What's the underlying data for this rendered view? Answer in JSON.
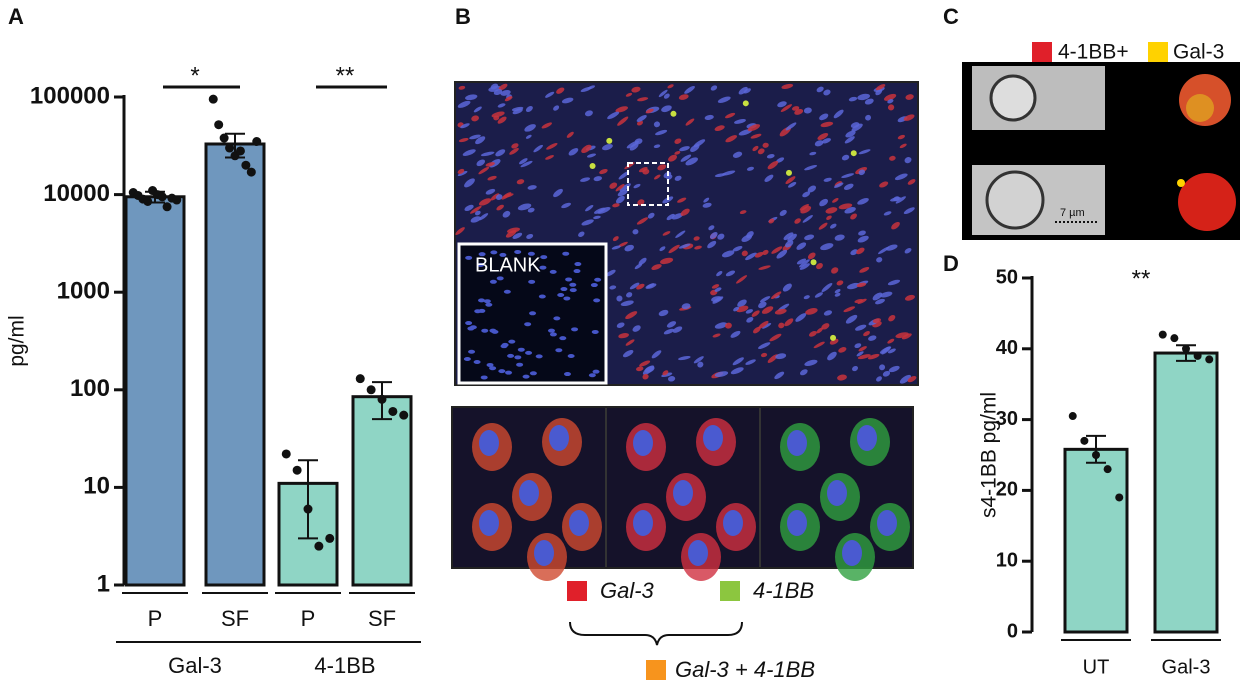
{
  "panel_labels": [
    "A",
    "B",
    "C",
    "D"
  ],
  "chart_data": [
    {
      "type": "bar",
      "log_scale": true,
      "ylabel": "pg/ml",
      "categories": [
        "P",
        "SF",
        "P",
        "SF"
      ],
      "groups": [
        {
          "name": "Gal-3",
          "members": [
            0,
            1
          ]
        },
        {
          "name": "4-1BB",
          "members": [
            2,
            3
          ]
        }
      ],
      "values": [
        9500,
        33000,
        11,
        85
      ],
      "errors": [
        1200,
        9000,
        8,
        35
      ],
      "points": [
        [
          10500,
          9800,
          9000,
          8500,
          11000,
          10000,
          9500,
          7500,
          9200,
          8800
        ],
        [
          95000,
          52000,
          38000,
          30000,
          25000,
          28000,
          20000,
          17000,
          35000
        ],
        [
          22,
          15,
          6,
          2.5,
          3
        ],
        [
          130,
          100,
          80,
          60,
          55
        ]
      ],
      "colors": [
        "#6f97be",
        "#6f97be",
        "#8fd5c5",
        "#8fd5c5"
      ],
      "annotations": [
        {
          "text": "*",
          "between": [
            0,
            1
          ]
        },
        {
          "text": "**",
          "between": [
            2,
            3
          ]
        }
      ],
      "ylim": [
        1,
        100000
      ],
      "yticks": [
        1,
        10,
        100,
        1000,
        10000,
        100000
      ]
    },
    {
      "type": "bar",
      "log_scale": false,
      "ylabel": "s4-1BB pg/ml",
      "categories": [
        "UT",
        "Gal-3"
      ],
      "values": [
        25.8,
        39.4
      ],
      "errors": [
        1.9,
        1.1
      ],
      "points": [
        [
          30.5,
          27,
          25,
          23,
          19
        ],
        [
          42,
          41.5,
          40,
          39,
          38.5
        ]
      ],
      "colors": [
        "#8fd5c5",
        "#8fd5c5"
      ],
      "annotations": [
        {
          "text": "**",
          "between": [
            0,
            1
          ]
        }
      ],
      "ylim": [
        0,
        50
      ],
      "yticks": [
        0,
        10,
        20,
        30,
        40,
        50
      ]
    }
  ],
  "microscopy": {
    "inset_label": "BLANK",
    "legend": [
      {
        "name": "Gal-3",
        "color": "#e0202a"
      },
      {
        "name": "4-1BB",
        "color": "#8cc63f"
      }
    ],
    "combined": {
      "name": "Gal-3 + 4-1BB",
      "color": "#f7941d"
    }
  },
  "imaging": {
    "legend": [
      {
        "name": "4-1BB+",
        "color": "#e0202a"
      },
      {
        "name": "Gal-3",
        "color": "#ffd200"
      }
    ],
    "scale": "7 µm"
  }
}
